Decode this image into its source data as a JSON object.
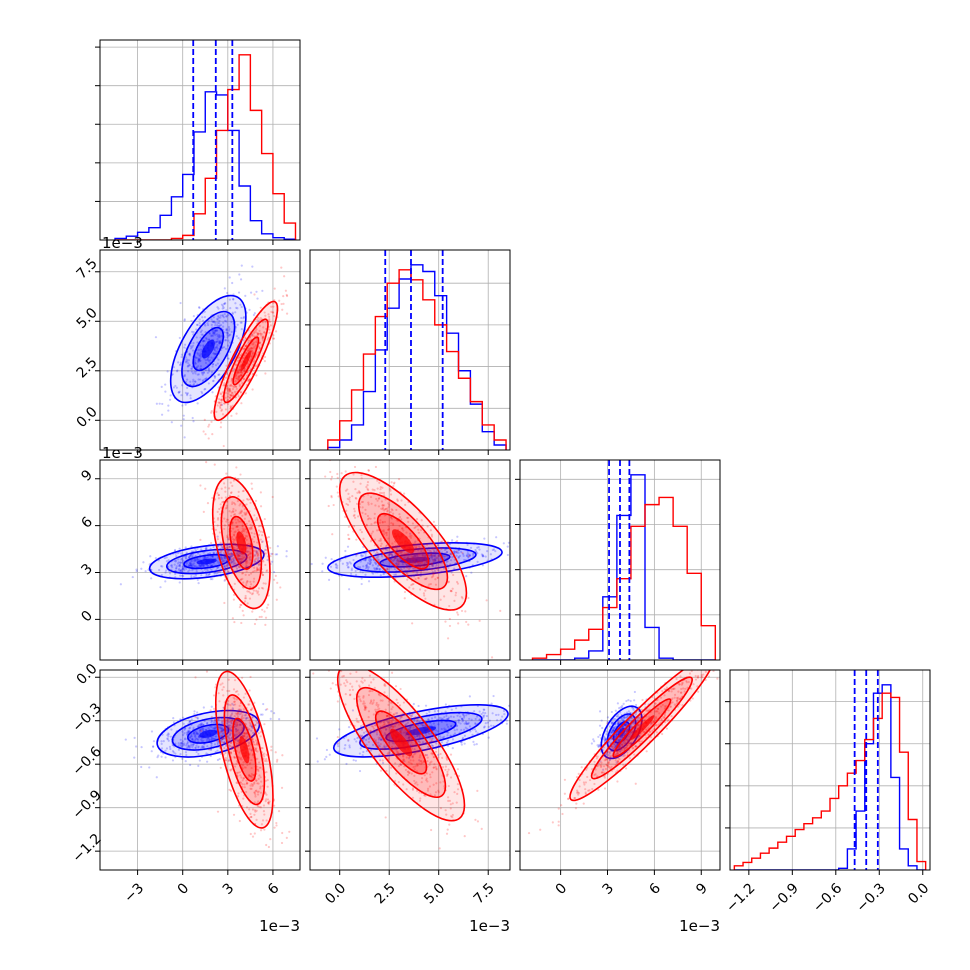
{
  "chart_data": {
    "type": "corner",
    "series": [
      {
        "name": "",
        "color": "#0000ff"
      },
      {
        "name": "",
        "color": "#ff0000"
      }
    ],
    "grid": true,
    "quantile_lines": {
      "series": 0,
      "style": "dashed",
      "values": [
        {
          "param": 0,
          "values": [
            0.7,
            2.2,
            3.3
          ]
        },
        {
          "param": 1,
          "values": [
            2.3,
            3.6,
            5.2
          ]
        },
        {
          "param": 2,
          "values": [
            3.1,
            3.8,
            4.4
          ]
        },
        {
          "param": 3,
          "values": [
            -0.47,
            -0.39,
            -0.31
          ]
        }
      ]
    },
    "params": [
      {
        "range": [
          -5.5,
          7.8
        ],
        "ticks": [
          -3,
          0,
          3,
          6
        ],
        "tick_labels": [
          "−3",
          "0",
          "3",
          "6"
        ],
        "offset_label": "1e−3",
        "hist_bins": [
          -4.5,
          -3.75,
          -3.0,
          -2.25,
          -1.5,
          -0.75,
          0.0,
          0.75,
          1.5,
          2.25,
          3.0,
          3.75,
          4.5,
          5.25,
          6.0,
          6.75,
          7.5
        ],
        "hist": [
          [
            2,
            5,
            10,
            16,
            32,
            56,
            85,
            140,
            192,
            188,
            142,
            70,
            25,
            8,
            3,
            1
          ],
          [
            0,
            0,
            0,
            0,
            0,
            2,
            6,
            34,
            80,
            142,
            195,
            240,
            168,
            112,
            60,
            22
          ]
        ]
      },
      {
        "range": [
          -1.5,
          8.6
        ],
        "ticks": [
          0.0,
          2.5,
          5.0,
          7.5
        ],
        "tick_labels": [
          "0.0",
          "2.5",
          "5.0",
          "7.5"
        ],
        "offset_label": "1e−3",
        "hist_bins": [
          -0.6,
          0.0,
          0.6,
          1.2,
          1.8,
          2.4,
          3.0,
          3.6,
          4.2,
          4.8,
          5.4,
          6.0,
          6.6,
          7.2,
          7.8,
          8.4
        ],
        "hist": [
          [
            3,
            12,
            30,
            70,
            120,
            170,
            205,
            222,
            214,
            185,
            140,
            95,
            55,
            22,
            6
          ],
          [
            12,
            35,
            72,
            115,
            160,
            200,
            216,
            204,
            180,
            150,
            118,
            86,
            58,
            30,
            12
          ]
        ]
      },
      {
        "range": [
          -2.6,
          10.2
        ],
        "ticks": [
          0,
          3,
          6,
          9
        ],
        "tick_labels": [
          "0",
          "3",
          "6",
          "9"
        ],
        "offset_label": "1e−3",
        "hist_bins": [
          -1.8,
          -0.9,
          0.0,
          0.9,
          1.8,
          2.7,
          3.6,
          4.5,
          5.4,
          6.3,
          7.2,
          8.1,
          9.0,
          9.9
        ],
        "hist": [
          [
            0,
            0,
            0,
            2,
            10,
            70,
            160,
            205,
            36,
            2,
            0,
            0,
            0
          ],
          [
            2,
            6,
            12,
            22,
            34,
            58,
            90,
            148,
            172,
            180,
            148,
            96,
            38
          ]
        ]
      },
      {
        "range": [
          -1.33,
          0.05
        ],
        "ticks": [
          -1.2,
          -0.9,
          -0.6,
          -0.3,
          0.0
        ],
        "tick_labels": [
          "−1.2",
          "−0.9",
          "−0.6",
          "−0.3",
          "0.0"
        ],
        "offset_label": "",
        "hist_bins": [
          -1.3,
          -1.24,
          -1.18,
          -1.12,
          -1.06,
          -1.0,
          -0.94,
          -0.88,
          -0.82,
          -0.76,
          -0.7,
          -0.64,
          -0.58,
          -0.52,
          -0.46,
          -0.4,
          -0.34,
          -0.28,
          -0.22,
          -0.16,
          -0.1,
          -0.04,
          0.02
        ],
        "hist": [
          [
            0,
            0,
            0,
            0,
            0,
            0,
            0,
            0,
            0,
            0,
            0,
            0,
            2,
            25,
            70,
            150,
            210,
            220,
            110,
            25,
            5,
            0
          ],
          [
            5,
            9,
            14,
            20,
            26,
            33,
            40,
            48,
            55,
            62,
            70,
            85,
            100,
            115,
            130,
            155,
            180,
            210,
            205,
            140,
            60,
            10
          ]
        ]
      }
    ],
    "pairs": [
      {
        "row": 1,
        "col": 0,
        "blobs": [
          {
            "series": 0,
            "mean": [
              1.7,
              3.6
            ],
            "sd": [
              1.25,
              1.35
            ],
            "rho": 0.6,
            "n": 520
          },
          {
            "series": 1,
            "mean": [
              4.2,
              3.0
            ],
            "sd": [
              1.05,
              1.5
            ],
            "rho": 0.88,
            "n": 520
          }
        ]
      },
      {
        "row": 2,
        "col": 0,
        "blobs": [
          {
            "series": 0,
            "mean": [
              1.6,
              3.7
            ],
            "sd": [
              1.9,
              0.55
            ],
            "rho": 0.4,
            "n": 520
          },
          {
            "series": 1,
            "mean": [
              3.9,
              4.9
            ],
            "sd": [
              0.95,
              2.1
            ],
            "rho": -0.45,
            "n": 520
          }
        ]
      },
      {
        "row": 2,
        "col": 1,
        "blobs": [
          {
            "series": 0,
            "mean": [
              3.8,
              3.8
            ],
            "sd": [
              2.2,
              0.55
            ],
            "rho": 0.45,
            "n": 520
          },
          {
            "series": 1,
            "mean": [
              3.2,
              5.0
            ],
            "sd": [
              1.6,
              2.2
            ],
            "rho": -0.75,
            "n": 520
          }
        ]
      },
      {
        "row": 3,
        "col": 0,
        "blobs": [
          {
            "series": 0,
            "mean": [
              1.7,
              -0.39
            ],
            "sd": [
              1.7,
              0.08
            ],
            "rho": 0.4,
            "n": 520
          },
          {
            "series": 1,
            "mean": [
              4.1,
              -0.5
            ],
            "sd": [
              0.95,
              0.27
            ],
            "rho": -0.6,
            "n": 520
          }
        ]
      },
      {
        "row": 3,
        "col": 1,
        "blobs": [
          {
            "series": 0,
            "mean": [
              4.1,
              -0.37
            ],
            "sd": [
              2.2,
              0.09
            ],
            "rho": 0.65,
            "n": 520
          },
          {
            "series": 1,
            "mean": [
              3.1,
              -0.45
            ],
            "sd": [
              1.6,
              0.27
            ],
            "rho": -0.8,
            "n": 520
          }
        ]
      },
      {
        "row": 3,
        "col": 2,
        "blobs": [
          {
            "series": 0,
            "mean": [
              3.9,
              -0.38
            ],
            "sd": [
              0.65,
              0.09
            ],
            "rho": 0.5,
            "n": 520
          },
          {
            "series": 1,
            "mean": [
              5.2,
              -0.35
            ],
            "sd": [
              2.3,
              0.25
            ],
            "rho": 0.95,
            "n": 520
          }
        ]
      }
    ]
  }
}
